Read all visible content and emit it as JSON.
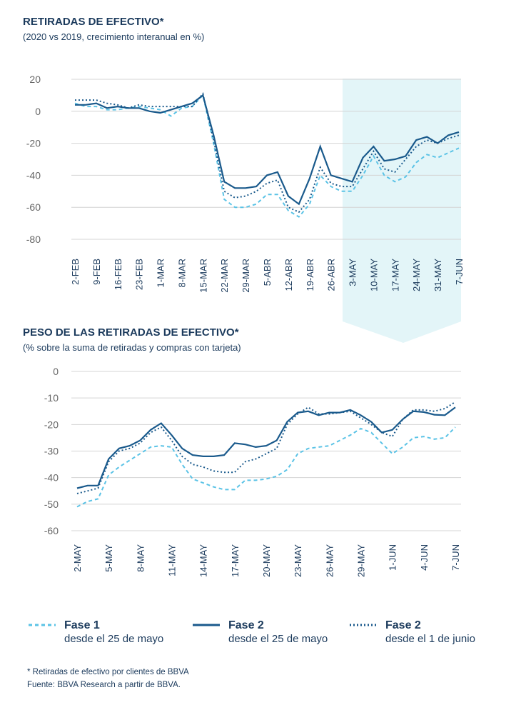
{
  "chart_data": [
    {
      "type": "line",
      "title": "RETIRADAS DE EFECTIVO*",
      "subtitle": "(2020 vs 2019, crecimiento interanual en %)",
      "categories": [
        "2-FEB",
        null,
        "9-FEB",
        null,
        "16-FEB",
        null,
        "23-FEB",
        null,
        "1-MAR",
        null,
        "8-MAR",
        null,
        "15-MAR",
        null,
        "22-MAR",
        null,
        "29-MAR",
        null,
        "5-ABR",
        null,
        "12-ABR",
        null,
        "19-ABR",
        null,
        "26-ABR",
        null,
        "3-MAY",
        null,
        "10-MAY",
        null,
        "17-MAY",
        null,
        "24-MAY",
        null,
        "31-MAY",
        null,
        "7-JUN"
      ],
      "ylim": [
        -80,
        20
      ],
      "yticks": [
        20,
        0,
        -20,
        -40,
        -60,
        -80
      ],
      "grid": true,
      "series": [
        {
          "name": "Fase 1",
          "detail": "desde el 25 de mayo",
          "color": "#5bc3e6",
          "dash": "dashed",
          "values": [
            5,
            3,
            3,
            1,
            1,
            2,
            3,
            2,
            1,
            -3,
            2,
            3,
            10,
            -20,
            -55,
            -60,
            -60,
            -58,
            -52,
            -52,
            -62,
            -66,
            -58,
            -40,
            -47,
            -50,
            -50,
            -40,
            -28,
            -40,
            -44,
            -41,
            -32,
            -27,
            -29,
            -26,
            -23
          ]
        },
        {
          "name": "Fase 2",
          "detail": "desde el 25 de mayo",
          "color": "#1a5a8c",
          "dash": "solid",
          "values": [
            4,
            4,
            5,
            2,
            3,
            2,
            2,
            0,
            -1,
            1,
            3,
            5,
            10,
            -15,
            -44,
            -48,
            -48,
            -47,
            -40,
            -38,
            -53,
            -58,
            -42,
            -22,
            -40,
            -42,
            -44,
            -29,
            -22,
            -31,
            -30,
            -28,
            -18,
            -16,
            -20,
            -15,
            -13
          ]
        },
        {
          "name": "Fase 2",
          "detail": "desde el 1 de junio",
          "color": "#1a5a8c",
          "dash": "dotted",
          "values": [
            7,
            7,
            7,
            5,
            4,
            2,
            4,
            3,
            3,
            3,
            3,
            3,
            11,
            -18,
            -50,
            -54,
            -53,
            -50,
            -45,
            -43,
            -60,
            -63,
            -55,
            -35,
            -45,
            -47,
            -47,
            -36,
            -25,
            -36,
            -38,
            -30,
            -22,
            -18,
            -20,
            -17,
            -15
          ]
        }
      ]
    },
    {
      "type": "line",
      "title": "PESO DE LAS RETIRADAS DE EFECTIVO*",
      "subtitle": "(% sobre la suma de retiradas y compras con tarjeta)",
      "categories": [
        "2-MAY",
        null,
        null,
        "5-MAY",
        null,
        null,
        "8-MAY",
        null,
        null,
        "11-MAY",
        null,
        null,
        "14-MAY",
        null,
        null,
        "17-MAY",
        null,
        null,
        "20-MAY",
        null,
        null,
        "23-MAY",
        null,
        null,
        "26-MAY",
        null,
        null,
        "29-MAY",
        null,
        null,
        "1-JUN",
        null,
        null,
        "4-JUN",
        null,
        null,
        "7-JUN"
      ],
      "ylim": [
        -60,
        0
      ],
      "yticks": [
        0,
        -10,
        -20,
        -30,
        -40,
        -50,
        -60
      ],
      "grid": true,
      "series": [
        {
          "name": "Fase 1",
          "color": "#5bc3e6",
          "dash": "dashed",
          "values": [
            -51,
            -49,
            -48,
            -39,
            -36,
            -33.5,
            -31,
            -28.5,
            -28,
            -28.5,
            -35,
            -40.5,
            -42,
            -43.5,
            -44.5,
            -44.5,
            -41,
            -41,
            -40.5,
            -39.5,
            -37,
            -31,
            -29,
            -28.5,
            -28,
            -26,
            -24,
            -21.5,
            -23,
            -27,
            -31,
            -28.5,
            -25,
            -24.5,
            -25.5,
            -25,
            -21
          ]
        },
        {
          "name": "Fase 2",
          "color": "#1a5a8c",
          "dash": "solid",
          "values": [
            -44,
            -43,
            -43,
            -33,
            -29,
            -28,
            -26,
            -22,
            -19.5,
            -24,
            -29,
            -31.5,
            -32,
            -32,
            -31.5,
            -27,
            -27.5,
            -28.5,
            -28,
            -26,
            -19,
            -15.5,
            -15,
            -16.5,
            -15.5,
            -15.5,
            -14.5,
            -16.5,
            -19,
            -23,
            -22,
            -18,
            -15,
            -15.3,
            -16.3,
            -16.5,
            -13.5
          ]
        },
        {
          "name": "Fase 2",
          "color": "#1a5a8c",
          "dash": "dotted",
          "values": [
            -46,
            -45,
            -44,
            -34,
            -30,
            -29,
            -27,
            -23,
            -21,
            -26,
            -32,
            -35,
            -36,
            -37.5,
            -38,
            -38,
            -34,
            -33,
            -31,
            -29,
            -20,
            -16,
            -13.5,
            -16,
            -16,
            -15.5,
            -15,
            -17.5,
            -20,
            -23,
            -24.5,
            -18,
            -14.5,
            -14.5,
            -15,
            -14,
            -11.5
          ]
        }
      ]
    }
  ],
  "notes": [
    "* Retiradas de efectivo por clientes de BBVA",
    "Fuente: BBVA Research a partir de BBVA."
  ]
}
